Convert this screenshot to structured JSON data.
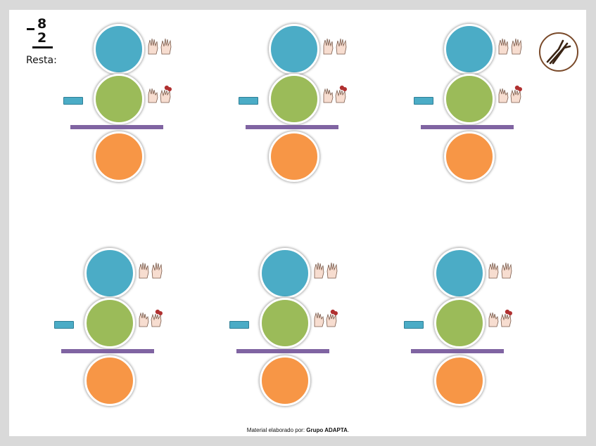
{
  "header": {
    "operation": {
      "minuend": "8",
      "subtrahend": "2"
    },
    "label": "Resta:"
  },
  "problems": [
    {
      "minus_sign": "−"
    },
    {
      "minus_sign": "−"
    },
    {
      "minus_sign": "−"
    },
    {
      "minus_sign": "−"
    },
    {
      "minus_sign": "−"
    },
    {
      "minus_sign": "−"
    }
  ],
  "colors": {
    "minuend_circle": "#4bacc6",
    "subtrahend_circle": "#9bbb59",
    "result_circle": "#f79646",
    "result_line": "#8064a2",
    "minus_box": "#4bacc6"
  },
  "icons": {
    "minuend_hint": "hands-counting-icon",
    "subtrahend_hint": "hands-crossed-fingers-icon",
    "logo": "grupo-adapta-logo"
  },
  "footer": {
    "prefix": "Material elaborado por:",
    "author": "Grupo ADAPTA",
    "suffix": "."
  }
}
